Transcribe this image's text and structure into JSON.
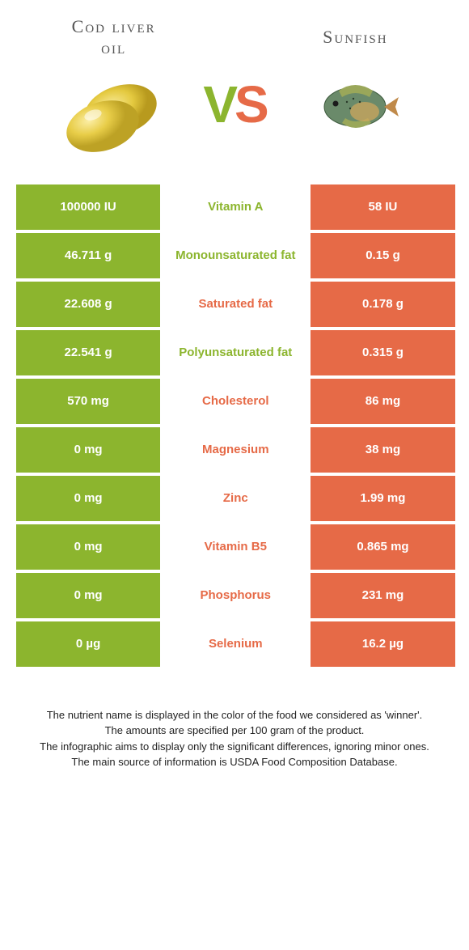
{
  "colors": {
    "green": "#8cb52e",
    "orange": "#e66a47",
    "background": "#ffffff"
  },
  "header": {
    "left_title_l1": "Cod liver",
    "left_title_l2": "oil",
    "right_title": "Sunfish",
    "vs_v": "V",
    "vs_s": "S"
  },
  "rows": [
    {
      "left": "100000 IU",
      "label": "Vitamin A",
      "right": "58 IU",
      "winner": "green"
    },
    {
      "left": "46.711 g",
      "label": "Monounsaturated fat",
      "right": "0.15 g",
      "winner": "green"
    },
    {
      "left": "22.608 g",
      "label": "Saturated fat",
      "right": "0.178 g",
      "winner": "orange"
    },
    {
      "left": "22.541 g",
      "label": "Polyunsaturated fat",
      "right": "0.315 g",
      "winner": "green"
    },
    {
      "left": "570 mg",
      "label": "Cholesterol",
      "right": "86 mg",
      "winner": "orange"
    },
    {
      "left": "0 mg",
      "label": "Magnesium",
      "right": "38 mg",
      "winner": "orange"
    },
    {
      "left": "0 mg",
      "label": "Zinc",
      "right": "1.99 mg",
      "winner": "orange"
    },
    {
      "left": "0 mg",
      "label": "Vitamin B5",
      "right": "0.865 mg",
      "winner": "orange"
    },
    {
      "left": "0 mg",
      "label": "Phosphorus",
      "right": "231 mg",
      "winner": "orange"
    },
    {
      "left": "0 µg",
      "label": "Selenium",
      "right": "16.2 µg",
      "winner": "orange"
    }
  ],
  "footer": {
    "line1": "The nutrient name is displayed in the color of the food we considered as 'winner'.",
    "line2": "The amounts are specified per 100 gram of the product.",
    "line3": "The infographic aims to display only the significant differences, ignoring minor ones.",
    "line4": "The main source of information is USDA Food Composition Database."
  }
}
